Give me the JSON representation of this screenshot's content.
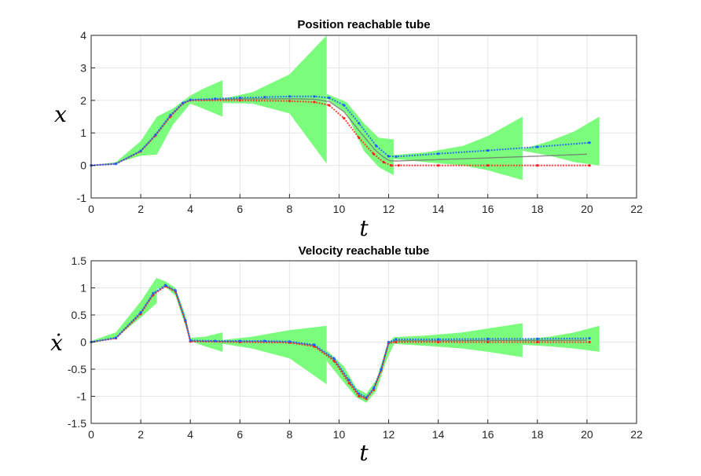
{
  "chart_data": [
    {
      "type": "line",
      "title": "Position reachable tube",
      "xlabel": "t",
      "ylabel": "x",
      "xlim": [
        0,
        22
      ],
      "ylim": [
        -1,
        4
      ],
      "xticks": [
        "0",
        "2",
        "4",
        "6",
        "8",
        "10",
        "12",
        "14",
        "16",
        "18",
        "20",
        "22"
      ],
      "yticks": [
        "-1",
        "0",
        "1",
        "2",
        "3",
        "4"
      ],
      "grid": true,
      "colors": {
        "tube": "#7cfc7c",
        "upper": "#1f5fff",
        "lower": "#ff2020",
        "center": "#707070"
      },
      "tube_segments": [
        {
          "t": [
            0,
            1,
            2,
            2.65
          ],
          "lo": [
            0,
            0.07,
            0.3,
            0.33
          ],
          "hi": [
            0,
            0.1,
            0.75,
            1.5
          ]
        },
        {
          "t": [
            2.65,
            3.3,
            4,
            4.5,
            5.3
          ],
          "lo": [
            0.33,
            1.25,
            1.9,
            1.75,
            1.5
          ],
          "hi": [
            1.5,
            1.75,
            2.15,
            2.35,
            2.62
          ]
        },
        {
          "t": [
            5.3,
            6.5,
            8,
            9.5
          ],
          "lo": [
            1.92,
            1.9,
            1.6,
            0.05
          ],
          "hi": [
            2.05,
            2.25,
            2.8,
            4.0
          ]
        },
        {
          "t": [
            9.5,
            10.3,
            11,
            11.6,
            12.2
          ],
          "lo": [
            2.05,
            1.6,
            0.45,
            -0.05,
            -0.3
          ],
          "hi": [
            2.2,
            1.95,
            1.3,
            0.85,
            0.8
          ]
        },
        {
          "t": [
            12.2,
            13.5,
            15,
            16,
            17.4
          ],
          "lo": [
            0.2,
            0.1,
            0,
            -0.15,
            -0.45
          ],
          "hi": [
            0.32,
            0.4,
            0.6,
            0.9,
            1.5
          ]
        },
        {
          "t": [
            17.4,
            18.5,
            19.5,
            20.5
          ],
          "lo": [
            0.45,
            0.3,
            0.1,
            0
          ],
          "hi": [
            0.5,
            0.75,
            1.05,
            1.5
          ]
        }
      ],
      "series": [
        {
          "role": "upper",
          "x": [
            0,
            1,
            2,
            2.6,
            3.2,
            3.7,
            4,
            5,
            6,
            7,
            8,
            9,
            9.6,
            10.2,
            10.8,
            11.5,
            12,
            12.3,
            14,
            16,
            18,
            20.1
          ],
          "y": [
            0,
            0.05,
            0.45,
            0.95,
            1.55,
            1.92,
            2.02,
            2.05,
            2.08,
            2.1,
            2.12,
            2.12,
            2.08,
            1.85,
            1.3,
            0.6,
            0.28,
            0.27,
            0.36,
            0.46,
            0.57,
            0.7
          ]
        },
        {
          "role": "lower",
          "x": [
            0,
            1,
            2,
            2.6,
            3.2,
            3.7,
            4,
            6,
            8,
            9,
            9.6,
            10.2,
            10.8,
            11.4,
            11.8,
            12.1,
            12.4,
            14,
            16,
            18,
            20.1
          ],
          "y": [
            0,
            0.05,
            0.43,
            0.92,
            1.5,
            1.9,
            2.0,
            2.0,
            1.98,
            1.95,
            1.85,
            1.45,
            0.85,
            0.35,
            0.1,
            0,
            0,
            0,
            0,
            0,
            0
          ]
        }
      ]
    },
    {
      "type": "line",
      "title": "Velocity reachable tube",
      "xlabel": "t",
      "ylabel": "ẋ",
      "xlim": [
        0,
        22
      ],
      "ylim": [
        -1.5,
        1.5
      ],
      "xticks": [
        "0",
        "2",
        "4",
        "6",
        "8",
        "10",
        "12",
        "14",
        "16",
        "18",
        "20",
        "22"
      ],
      "yticks": [
        "-1.5",
        "-1",
        "-0.5",
        "0",
        "0.5",
        "1",
        "1.5"
      ],
      "grid": true,
      "colors": {
        "tube": "#7cfc7c",
        "upper": "#1f5fff",
        "lower": "#ff2020",
        "center": "#707070"
      },
      "tube_segments": [
        {
          "t": [
            0,
            1,
            2,
            2.65
          ],
          "lo": [
            -0.02,
            0.08,
            0.45,
            0.72
          ],
          "hi": [
            0.02,
            0.18,
            0.75,
            1.2
          ]
        },
        {
          "t": [
            2.65,
            3,
            3.4,
            3.8,
            4
          ],
          "lo": [
            0.98,
            1.02,
            0.85,
            0.3,
            0.02
          ],
          "hi": [
            1.18,
            1.12,
            1.0,
            0.5,
            0.08
          ]
        },
        {
          "t": [
            4,
            4.6,
            5.3
          ],
          "lo": [
            0.02,
            -0.08,
            -0.18
          ],
          "hi": [
            0.08,
            0.1,
            0.18
          ]
        },
        {
          "t": [
            5.3,
            6.5,
            8,
            9.5
          ],
          "lo": [
            -0.03,
            -0.12,
            -0.3,
            -0.78
          ],
          "hi": [
            0.04,
            0.1,
            0.22,
            0.3
          ]
        },
        {
          "t": [
            9.5,
            10.2,
            10.7,
            11.1,
            11.5,
            11.9,
            12.2
          ],
          "lo": [
            -0.35,
            -0.75,
            -1.02,
            -1.12,
            -0.9,
            -0.35,
            -0.05
          ],
          "hi": [
            -0.15,
            -0.45,
            -0.85,
            -0.95,
            -0.7,
            -0.1,
            0.1
          ]
        },
        {
          "t": [
            12.2,
            13.5,
            15,
            16,
            17.4
          ],
          "lo": [
            -0.03,
            -0.07,
            -0.12,
            -0.18,
            -0.28
          ],
          "hi": [
            0.09,
            0.12,
            0.18,
            0.25,
            0.35
          ]
        },
        {
          "t": [
            17.4,
            18.5,
            19.5,
            20.5
          ],
          "lo": [
            -0.05,
            -0.08,
            -0.12,
            -0.18
          ],
          "hi": [
            0.05,
            0.1,
            0.18,
            0.3
          ]
        }
      ],
      "series": [
        {
          "role": "upper",
          "x": [
            0,
            1,
            2,
            2.5,
            3,
            3.4,
            3.8,
            4,
            5,
            6,
            7,
            8,
            9,
            9.8,
            10.4,
            10.8,
            11.1,
            11.4,
            11.7,
            12,
            12.3,
            14,
            16,
            18,
            20.1
          ],
          "y": [
            0,
            0.08,
            0.55,
            0.9,
            1.05,
            0.95,
            0.4,
            0.03,
            0.02,
            0.02,
            0.02,
            0.01,
            -0.05,
            -0.3,
            -0.7,
            -0.95,
            -1.02,
            -0.85,
            -0.5,
            0,
            0.05,
            0.05,
            0.06,
            0.06,
            0.07
          ]
        },
        {
          "role": "lower",
          "x": [
            0,
            1,
            2,
            2.5,
            3,
            3.4,
            3.8,
            4,
            6,
            8,
            9,
            9.8,
            10.4,
            10.8,
            11.1,
            11.4,
            11.7,
            12,
            12.3,
            14,
            16,
            18,
            20.1
          ],
          "y": [
            0,
            0.07,
            0.52,
            0.87,
            1.03,
            0.93,
            0.38,
            0.01,
            0,
            -0.01,
            -0.08,
            -0.35,
            -0.76,
            -1.0,
            -1.05,
            -0.88,
            -0.52,
            -0.02,
            0,
            0,
            0,
            0,
            0
          ]
        }
      ]
    }
  ]
}
